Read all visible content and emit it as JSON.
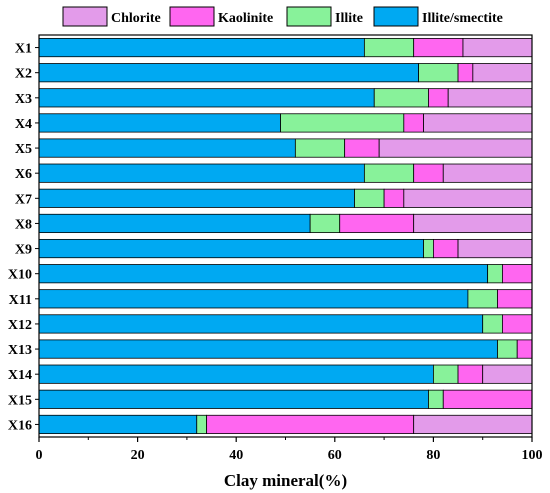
{
  "chart_data": {
    "type": "bar",
    "orientation": "horizontal",
    "stacked": true,
    "categories": [
      "X1",
      "X2",
      "X3",
      "X4",
      "X5",
      "X6",
      "X7",
      "X8",
      "X9",
      "X10",
      "X11",
      "X12",
      "X13",
      "X14",
      "X15",
      "X16"
    ],
    "xlabel": "Clay mineral(%)",
    "ylabel": "",
    "xlim": [
      0,
      100
    ],
    "xticks": [
      0,
      20,
      40,
      60,
      80,
      100
    ],
    "grid": false,
    "legend_position": "top",
    "series": [
      {
        "name": "Illite/smectite",
        "color": "#00A9F2",
        "values": [
          66,
          77,
          68,
          49,
          52,
          66,
          64,
          55,
          78,
          91,
          87,
          90,
          93,
          80,
          79,
          32
        ]
      },
      {
        "name": "Illite",
        "color": "#88F29A",
        "values": [
          10,
          8,
          11,
          25,
          10,
          10,
          6,
          6,
          2,
          3,
          6,
          4,
          4,
          5,
          3,
          2
        ]
      },
      {
        "name": "Kaolinite",
        "color": "#FF66F0",
        "values": [
          10,
          3,
          4,
          4,
          7,
          6,
          4,
          15,
          5,
          6,
          7,
          6,
          3,
          5,
          18,
          42
        ]
      },
      {
        "name": "Chlorite",
        "color": "#E39BEA",
        "values": [
          14,
          12,
          17,
          22,
          31,
          18,
          26,
          24,
          15,
          0,
          0,
          0,
          0,
          10,
          0,
          24
        ]
      }
    ],
    "legend_order": [
      "Chlorite",
      "Kaolinite",
      "Illite",
      "Illite/smectite"
    ]
  }
}
